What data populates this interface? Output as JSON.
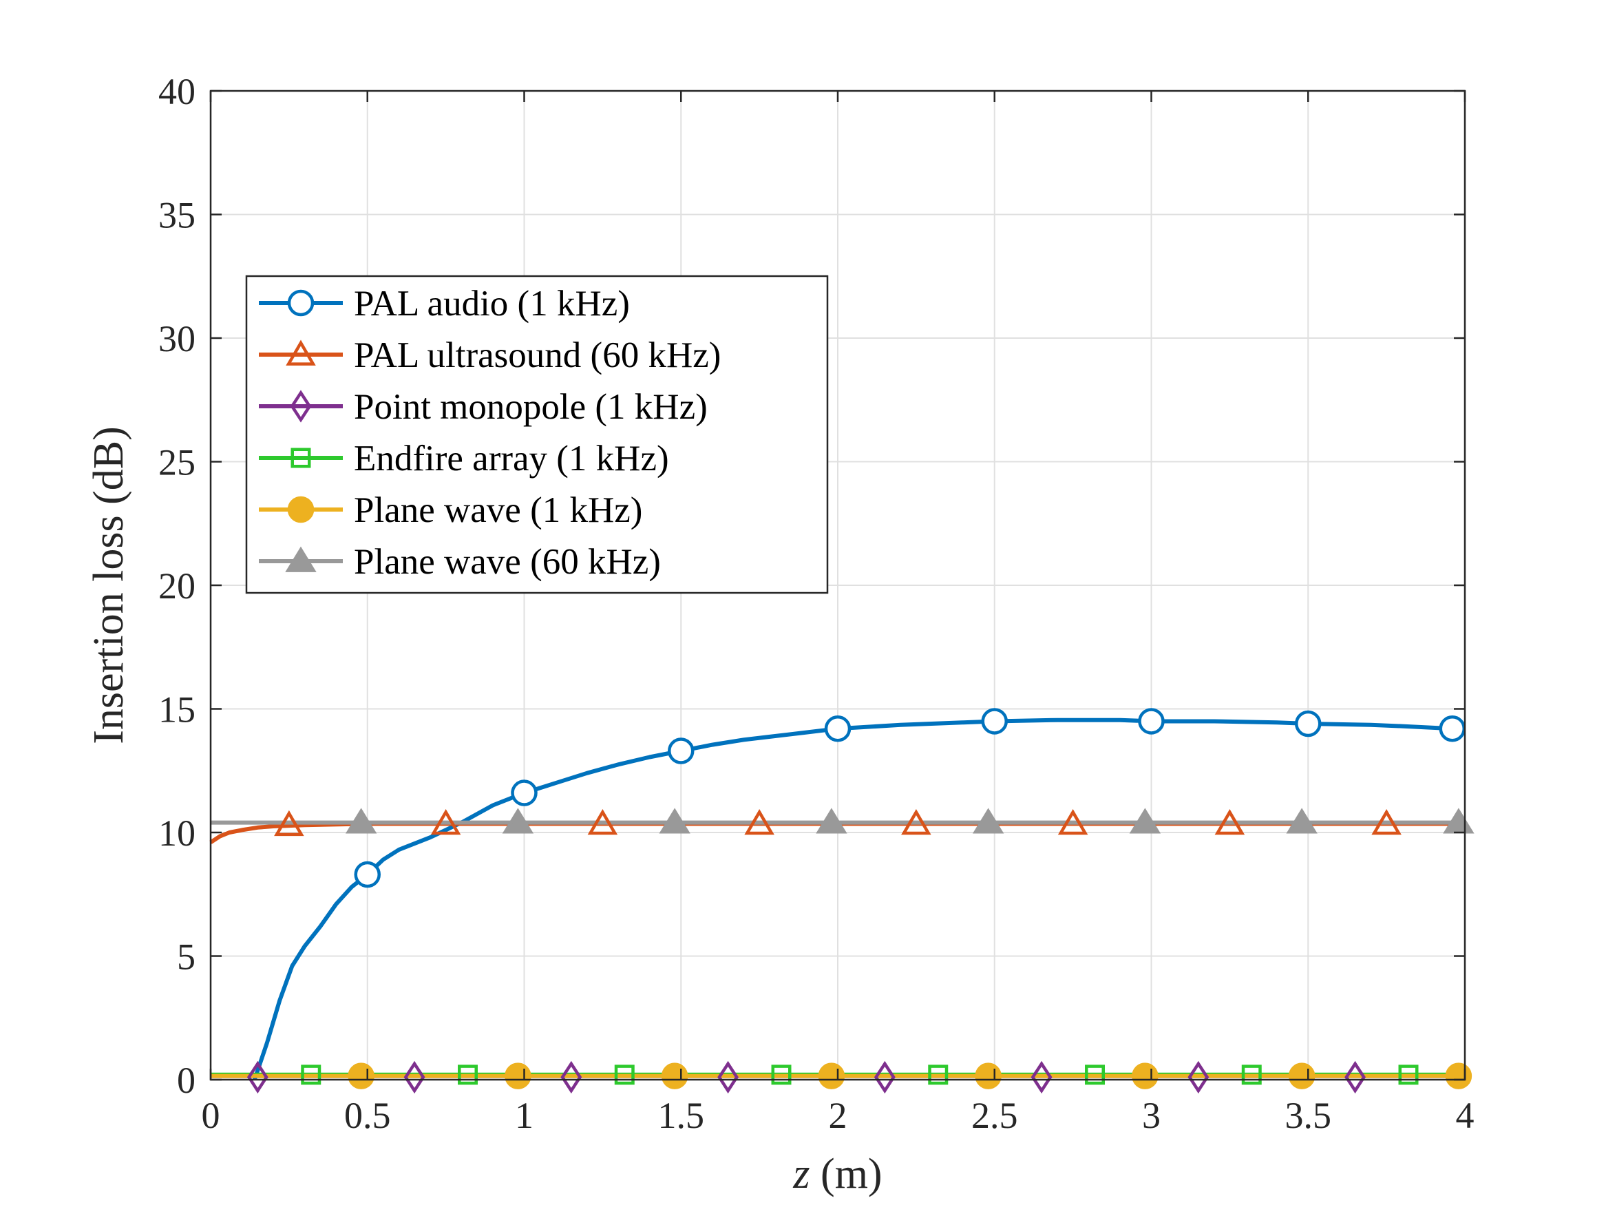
{
  "chart_data": {
    "type": "line",
    "title": "",
    "xlabel": "z (m)",
    "xlabel_var": "z",
    "xlabel_unit": " (m)",
    "ylabel": "Insertion loss (dB)",
    "xlim": [
      0,
      4
    ],
    "ylim": [
      0,
      40
    ],
    "xticks": [
      0,
      0.5,
      1,
      1.5,
      2,
      2.5,
      3,
      3.5,
      4
    ],
    "xtick_labels": [
      "0",
      "0.5",
      "1",
      "1.5",
      "2",
      "2.5",
      "3",
      "3.5",
      "4"
    ],
    "yticks": [
      0,
      5,
      10,
      15,
      20,
      25,
      30,
      35,
      40
    ],
    "ytick_labels": [
      "0",
      "5",
      "10",
      "15",
      "20",
      "25",
      "30",
      "35",
      "40"
    ],
    "grid": true,
    "legend_position": "upper-left",
    "series": [
      {
        "name": "PAL audio (1 kHz)",
        "color": "#0072BD",
        "marker": "circle-open",
        "line": [
          [
            0.14,
            0.0
          ],
          [
            0.18,
            1.5
          ],
          [
            0.22,
            3.2
          ],
          [
            0.26,
            4.6
          ],
          [
            0.3,
            5.4
          ],
          [
            0.35,
            6.2
          ],
          [
            0.4,
            7.1
          ],
          [
            0.45,
            7.8
          ],
          [
            0.5,
            8.3
          ],
          [
            0.55,
            8.9
          ],
          [
            0.6,
            9.3
          ],
          [
            0.7,
            9.8
          ],
          [
            0.8,
            10.4
          ],
          [
            0.9,
            11.1
          ],
          [
            1.0,
            11.6
          ],
          [
            1.1,
            12.0
          ],
          [
            1.2,
            12.4
          ],
          [
            1.3,
            12.75
          ],
          [
            1.4,
            13.05
          ],
          [
            1.5,
            13.3
          ],
          [
            1.6,
            13.55
          ],
          [
            1.7,
            13.75
          ],
          [
            1.8,
            13.9
          ],
          [
            1.9,
            14.05
          ],
          [
            2.0,
            14.2
          ],
          [
            2.2,
            14.35
          ],
          [
            2.4,
            14.45
          ],
          [
            2.5,
            14.5
          ],
          [
            2.7,
            14.55
          ],
          [
            2.9,
            14.55
          ],
          [
            3.0,
            14.5
          ],
          [
            3.2,
            14.5
          ],
          [
            3.4,
            14.45
          ],
          [
            3.5,
            14.4
          ],
          [
            3.7,
            14.35
          ],
          [
            3.8,
            14.3
          ],
          [
            3.96,
            14.2
          ]
        ],
        "markers": [
          [
            0.5,
            8.3
          ],
          [
            1.0,
            11.6
          ],
          [
            1.5,
            13.3
          ],
          [
            2.0,
            14.2
          ],
          [
            2.5,
            14.5
          ],
          [
            3.0,
            14.5
          ],
          [
            3.5,
            14.4
          ],
          [
            3.96,
            14.2
          ]
        ]
      },
      {
        "name": "PAL ultrasound (60 kHz)",
        "color": "#D95319",
        "marker": "triangle-open",
        "line": [
          [
            0.0,
            9.6
          ],
          [
            0.03,
            9.85
          ],
          [
            0.06,
            10.0
          ],
          [
            0.1,
            10.1
          ],
          [
            0.15,
            10.2
          ],
          [
            0.2,
            10.25
          ],
          [
            0.3,
            10.3
          ],
          [
            0.5,
            10.35
          ],
          [
            1.0,
            10.35
          ],
          [
            4.0,
            10.35
          ]
        ],
        "markers": [
          [
            0.25,
            10.3
          ],
          [
            0.75,
            10.35
          ],
          [
            1.25,
            10.35
          ],
          [
            1.75,
            10.35
          ],
          [
            2.25,
            10.35
          ],
          [
            2.75,
            10.35
          ],
          [
            3.25,
            10.35
          ],
          [
            3.75,
            10.35
          ]
        ]
      },
      {
        "name": "Point monopole (1 kHz)",
        "color": "#7E2F8E",
        "marker": "diamond-open",
        "line": [
          [
            0.0,
            0.15
          ],
          [
            4.0,
            0.15
          ]
        ],
        "markers": [
          [
            0.15,
            0.1
          ],
          [
            0.65,
            0.1
          ],
          [
            1.15,
            0.1
          ],
          [
            1.65,
            0.1
          ],
          [
            2.15,
            0.1
          ],
          [
            2.65,
            0.1
          ],
          [
            3.15,
            0.1
          ],
          [
            3.65,
            0.1
          ]
        ]
      },
      {
        "name": "Endfire array (1 kHz)",
        "color": "#2DC92D",
        "marker": "square-open",
        "line": [
          [
            0.0,
            0.2
          ],
          [
            4.0,
            0.2
          ]
        ],
        "markers": [
          [
            0.32,
            0.2
          ],
          [
            0.82,
            0.2
          ],
          [
            1.32,
            0.2
          ],
          [
            1.82,
            0.2
          ],
          [
            2.32,
            0.2
          ],
          [
            2.82,
            0.2
          ],
          [
            3.32,
            0.2
          ],
          [
            3.82,
            0.2
          ]
        ]
      },
      {
        "name": "Plane wave (1 kHz)",
        "color": "#EDB120",
        "marker": "circle-filled",
        "line": [
          [
            0.0,
            0.15
          ],
          [
            4.0,
            0.15
          ]
        ],
        "markers": [
          [
            0.48,
            0.15
          ],
          [
            0.98,
            0.15
          ],
          [
            1.48,
            0.15
          ],
          [
            1.98,
            0.15
          ],
          [
            2.48,
            0.15
          ],
          [
            2.98,
            0.15
          ],
          [
            3.48,
            0.15
          ],
          [
            3.98,
            0.15
          ]
        ]
      },
      {
        "name": "Plane wave (60 kHz)",
        "color": "#999999",
        "marker": "triangle-filled",
        "line": [
          [
            0.0,
            10.4
          ],
          [
            4.0,
            10.4
          ]
        ],
        "markers": [
          [
            0.48,
            10.4
          ],
          [
            0.98,
            10.4
          ],
          [
            1.48,
            10.4
          ],
          [
            1.98,
            10.4
          ],
          [
            2.48,
            10.4
          ],
          [
            2.98,
            10.4
          ],
          [
            3.48,
            10.4
          ],
          [
            3.98,
            10.4
          ]
        ]
      }
    ]
  }
}
